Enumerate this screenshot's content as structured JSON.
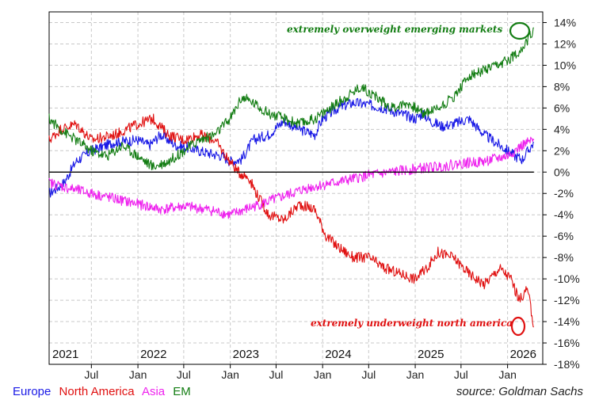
{
  "chart_data": {
    "type": "line",
    "year_labels": [
      "2021",
      "2022",
      "2023",
      "2024",
      "2025",
      "2026"
    ],
    "month_labels": [
      "Jul",
      "Jan",
      "Jul",
      "Jan",
      "Jul",
      "Jan",
      "Jul",
      "Jan",
      "Jul",
      "Jan"
    ],
    "y_tick_labels": [
      "14%",
      "12%",
      "10%",
      "8%",
      "6%",
      "4%",
      "2%",
      "0%",
      "-2%",
      "-4%",
      "-6%",
      "-8%",
      "-10%",
      "-12%",
      "-14%",
      "-16%",
      "-18%"
    ],
    "ylim": [
      -18,
      15
    ],
    "xlim": [
      "2021-01-15",
      "2026-05-20"
    ],
    "grid": true,
    "legend_position": "bottom-left",
    "series": [
      {
        "name": "Europe",
        "color": "#1a1ae6",
        "points": [
          [
            "2021-01-15",
            -2
          ],
          [
            "2021-02-15",
            -1.5
          ],
          [
            "2021-03-15",
            -1
          ],
          [
            "2021-05-01",
            1
          ],
          [
            "2021-07-01",
            2
          ],
          [
            "2021-10-01",
            2.8
          ],
          [
            "2022-01-01",
            3
          ],
          [
            "2022-02-15",
            2.5
          ],
          [
            "2022-04-01",
            3.5
          ],
          [
            "2022-06-01",
            2.5
          ],
          [
            "2022-08-01",
            2.2
          ],
          [
            "2022-10-01",
            1.8
          ],
          [
            "2022-12-01",
            1.5
          ],
          [
            "2023-01-01",
            1
          ],
          [
            "2023-02-15",
            1.2
          ],
          [
            "2023-04-01",
            3
          ],
          [
            "2023-06-01",
            3.5
          ],
          [
            "2023-08-01",
            4.8
          ],
          [
            "2023-10-01",
            4
          ],
          [
            "2023-12-01",
            3.5
          ],
          [
            "2024-01-01",
            5
          ],
          [
            "2024-03-01",
            6
          ],
          [
            "2024-05-01",
            6.5
          ],
          [
            "2024-07-01",
            6.3
          ],
          [
            "2024-09-01",
            6
          ],
          [
            "2024-11-01",
            5.5
          ],
          [
            "2025-01-01",
            5
          ],
          [
            "2025-02-01",
            5.5
          ],
          [
            "2025-03-01",
            4.8
          ],
          [
            "2025-04-15",
            4.3
          ],
          [
            "2025-06-01",
            4.5
          ],
          [
            "2025-08-01",
            5
          ],
          [
            "2025-10-01",
            3.5
          ],
          [
            "2025-12-01",
            2.5
          ],
          [
            "2026-02-01",
            1.5
          ],
          [
            "2026-03-01",
            1.2
          ],
          [
            "2026-04-15",
            2.8
          ]
        ]
      },
      {
        "name": "North America",
        "color": "#e01010",
        "points": [
          [
            "2021-01-15",
            3
          ],
          [
            "2021-03-01",
            4
          ],
          [
            "2021-05-01",
            4.5
          ],
          [
            "2021-07-01",
            3
          ],
          [
            "2021-10-01",
            3.5
          ],
          [
            "2022-01-01",
            4.5
          ],
          [
            "2022-03-01",
            5
          ],
          [
            "2022-05-01",
            3.5
          ],
          [
            "2022-07-01",
            3
          ],
          [
            "2022-09-01",
            3.5
          ],
          [
            "2022-11-01",
            3
          ],
          [
            "2022-12-15",
            1.5
          ],
          [
            "2023-02-01",
            0
          ],
          [
            "2023-03-15",
            -0.5
          ],
          [
            "2023-04-15",
            -2
          ],
          [
            "2023-06-01",
            -4
          ],
          [
            "2023-08-01",
            -4.5
          ],
          [
            "2023-10-01",
            -3
          ],
          [
            "2023-12-01",
            -3.5
          ],
          [
            "2024-01-15",
            -6
          ],
          [
            "2024-03-01",
            -7
          ],
          [
            "2024-05-01",
            -8
          ],
          [
            "2024-07-01",
            -8
          ],
          [
            "2024-09-01",
            -9
          ],
          [
            "2024-11-01",
            -9.5
          ],
          [
            "2025-01-01",
            -10
          ],
          [
            "2025-02-15",
            -9
          ],
          [
            "2025-04-01",
            -7.5
          ],
          [
            "2025-06-01",
            -8
          ],
          [
            "2025-08-01",
            -9.5
          ],
          [
            "2025-10-01",
            -10.5
          ],
          [
            "2025-12-01",
            -9
          ],
          [
            "2026-01-15",
            -10
          ],
          [
            "2026-02-15",
            -12
          ],
          [
            "2026-03-20",
            -11
          ],
          [
            "2026-04-05",
            -13
          ],
          [
            "2026-04-15",
            -14.5
          ]
        ]
      },
      {
        "name": "Asia",
        "color": "#ee22ee",
        "points": [
          [
            "2021-01-15",
            -1
          ],
          [
            "2021-04-01",
            -1.5
          ],
          [
            "2021-07-01",
            -2
          ],
          [
            "2021-10-01",
            -2.5
          ],
          [
            "2022-01-01",
            -3
          ],
          [
            "2022-04-01",
            -3.5
          ],
          [
            "2022-07-01",
            -3.2
          ],
          [
            "2022-10-01",
            -3.5
          ],
          [
            "2023-01-01",
            -4
          ],
          [
            "2023-03-01",
            -3.5
          ],
          [
            "2023-05-01",
            -3
          ],
          [
            "2023-07-01",
            -2.5
          ],
          [
            "2023-09-01",
            -2
          ],
          [
            "2023-11-01",
            -1.5
          ],
          [
            "2024-01-01",
            -1.2
          ],
          [
            "2024-04-01",
            -0.8
          ],
          [
            "2024-07-01",
            -0.3
          ],
          [
            "2024-10-01",
            0
          ],
          [
            "2025-01-01",
            0.3
          ],
          [
            "2025-04-01",
            0.5
          ],
          [
            "2025-07-01",
            0.8
          ],
          [
            "2025-10-01",
            1
          ],
          [
            "2026-01-01",
            1.5
          ],
          [
            "2026-03-01",
            2.5
          ],
          [
            "2026-04-15",
            3
          ]
        ]
      },
      {
        "name": "EM",
        "color": "#137d13",
        "points": [
          [
            "2021-01-15",
            5
          ],
          [
            "2021-03-01",
            4
          ],
          [
            "2021-05-01",
            3
          ],
          [
            "2021-07-01",
            2
          ],
          [
            "2021-09-01",
            1.5
          ],
          [
            "2021-11-01",
            2.5
          ],
          [
            "2022-01-01",
            1.5
          ],
          [
            "2022-03-01",
            0.5
          ],
          [
            "2022-05-01",
            1
          ],
          [
            "2022-07-01",
            2
          ],
          [
            "2022-09-01",
            3
          ],
          [
            "2022-11-01",
            3.5
          ],
          [
            "2023-01-01",
            5
          ],
          [
            "2023-02-15",
            7
          ],
          [
            "2023-04-01",
            6.5
          ],
          [
            "2023-06-01",
            5.5
          ],
          [
            "2023-08-01",
            5
          ],
          [
            "2023-10-01",
            4.5
          ],
          [
            "2023-12-01",
            5
          ],
          [
            "2024-02-01",
            6
          ],
          [
            "2024-04-01",
            7
          ],
          [
            "2024-06-01",
            8
          ],
          [
            "2024-08-01",
            7
          ],
          [
            "2024-10-01",
            6
          ],
          [
            "2024-12-01",
            6.5
          ],
          [
            "2025-02-01",
            5.5
          ],
          [
            "2025-04-01",
            6
          ],
          [
            "2025-06-01",
            7
          ],
          [
            "2025-08-01",
            9
          ],
          [
            "2025-10-01",
            9.5
          ],
          [
            "2025-12-01",
            10
          ],
          [
            "2026-02-01",
            11
          ],
          [
            "2026-03-15",
            12
          ],
          [
            "2026-04-15",
            13.5
          ]
        ]
      }
    ],
    "zero_line": 0,
    "annotations": [
      {
        "text": "extremely overweight emerging markets",
        "color": "#137d13"
      },
      {
        "text": "extremely underweight north america",
        "color": "#e01010"
      }
    ]
  },
  "legend": [
    {
      "label": "Europe",
      "color": "#1a1ae6"
    },
    {
      "label": "North America",
      "color": "#e01010"
    },
    {
      "label": "Asia",
      "color": "#ee22ee"
    },
    {
      "label": "EM",
      "color": "#137d13"
    }
  ],
  "source": "source: Goldman Sachs"
}
